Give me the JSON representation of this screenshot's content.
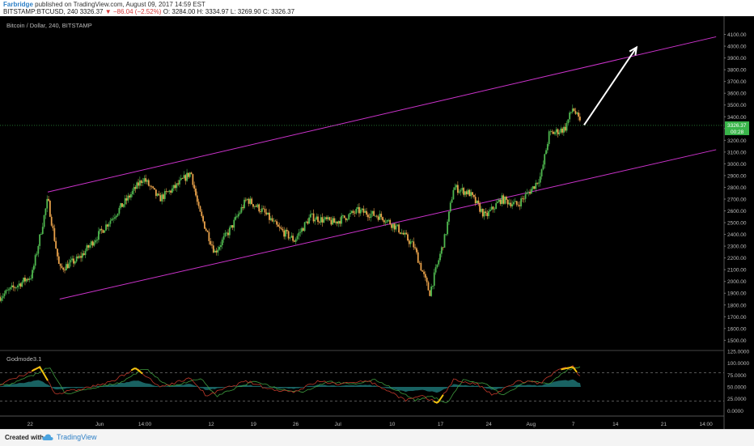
{
  "header": {
    "author": "Farbridge",
    "published_text": "published on TradingView.com, August 09, 2017 14:59 EST",
    "symbol": "BITSTAMP:BTCUSD, 240",
    "last": "3326.37",
    "change": "−86.04 (−2.52%)",
    "ohlc": "O: 3284.00  H: 3334.97  L: 3269.90  C: 3326.37"
  },
  "footer": {
    "created_with": "Created with",
    "brand": "TradingView"
  },
  "colors": {
    "up": "#4fb84f",
    "down": "#e8a14a",
    "channel": "#cc33cc",
    "arrow": "#ffffff",
    "price_label": "#39b54a"
  },
  "chart_data": [
    {
      "type": "candlestick",
      "title": "Bitcoin / Dollar, 240, BITSTAMP",
      "y_tick_labels": [
        "1500.00",
        "1600.00",
        "1700.00",
        "1800.00",
        "1900.00",
        "2000.00",
        "2100.00",
        "2200.00",
        "2300.00",
        "2400.00",
        "2500.00",
        "2600.00",
        "2700.00",
        "2800.00",
        "2900.00",
        "3000.00",
        "3100.00",
        "3200.00",
        "3300.00",
        "3400.00",
        "3500.00",
        "3600.00",
        "3700.00",
        "3800.00",
        "3900.00",
        "4000.00",
        "4100.00"
      ],
      "ylim": [
        1420,
        4200
      ],
      "x_tick_labels": [
        "22",
        "Jun",
        "14:00",
        "12",
        "19",
        "26",
        "Jul",
        "10",
        "17",
        "24",
        "Aug",
        "7",
        "14",
        "21",
        "14:00"
      ],
      "last_price": {
        "value": 3326.37,
        "label": "3326.37",
        "countdown": "00:28"
      },
      "price_path": [
        {
          "d": 0,
          "p": 1870
        },
        {
          "d": 4,
          "p": 2050
        },
        {
          "d": 6,
          "p": 2700
        },
        {
          "d": 7.5,
          "p": 2100
        },
        {
          "d": 10,
          "p": 2200
        },
        {
          "d": 13,
          "p": 2450
        },
        {
          "d": 16,
          "p": 2700
        },
        {
          "d": 18,
          "p": 2880
        },
        {
          "d": 20,
          "p": 2700
        },
        {
          "d": 22,
          "p": 2800
        },
        {
          "d": 24,
          "p": 2930
        },
        {
          "d": 25,
          "p": 2600
        },
        {
          "d": 27,
          "p": 2250
        },
        {
          "d": 29,
          "p": 2450
        },
        {
          "d": 31,
          "p": 2700
        },
        {
          "d": 33,
          "p": 2600
        },
        {
          "d": 35,
          "p": 2450
        },
        {
          "d": 37,
          "p": 2350
        },
        {
          "d": 39,
          "p": 2550
        },
        {
          "d": 42,
          "p": 2500
        },
        {
          "d": 45,
          "p": 2600
        },
        {
          "d": 48,
          "p": 2550
        },
        {
          "d": 50,
          "p": 2450
        },
        {
          "d": 52,
          "p": 2300
        },
        {
          "d": 54,
          "p": 1900
        },
        {
          "d": 56,
          "p": 2400
        },
        {
          "d": 57,
          "p": 2800
        },
        {
          "d": 59,
          "p": 2750
        },
        {
          "d": 61,
          "p": 2550
        },
        {
          "d": 63,
          "p": 2700
        },
        {
          "d": 65,
          "p": 2650
        },
        {
          "d": 67,
          "p": 2800
        },
        {
          "d": 68,
          "p": 2900
        },
        {
          "d": 69,
          "p": 3250
        },
        {
          "d": 71,
          "p": 3300
        },
        {
          "d": 72,
          "p": 3480
        },
        {
          "d": 73,
          "p": 3330
        }
      ],
      "trend_channel": {
        "upper": [
          {
            "d": 6,
            "p": 2760
          },
          {
            "d": 90,
            "p": 4080
          }
        ],
        "lower": [
          {
            "d": 7.5,
            "p": 1850
          },
          {
            "d": 90,
            "p": 3120
          }
        ]
      },
      "arrow": {
        "from": {
          "d": 73,
          "p": 3330
        },
        "to": {
          "d": 80,
          "p": 3990
        }
      }
    },
    {
      "type": "line",
      "title": "Godmode3.1",
      "y_tick_labels": [
        "0.0000",
        "25.0000",
        "50.0000",
        "75.0000",
        "100.0000",
        "125.0000"
      ],
      "ylim": [
        -8,
        125
      ],
      "levels": [
        20,
        80
      ],
      "oscillator_path": [
        {
          "d": 0,
          "v": 55
        },
        {
          "d": 3,
          "v": 75
        },
        {
          "d": 5,
          "v": 92
        },
        {
          "d": 7,
          "v": 35
        },
        {
          "d": 10,
          "v": 45
        },
        {
          "d": 14,
          "v": 60
        },
        {
          "d": 17,
          "v": 90
        },
        {
          "d": 20,
          "v": 50
        },
        {
          "d": 24,
          "v": 68
        },
        {
          "d": 26,
          "v": 30
        },
        {
          "d": 28,
          "v": 45
        },
        {
          "d": 31,
          "v": 62
        },
        {
          "d": 34,
          "v": 45
        },
        {
          "d": 37,
          "v": 40
        },
        {
          "d": 40,
          "v": 62
        },
        {
          "d": 43,
          "v": 55
        },
        {
          "d": 46,
          "v": 65
        },
        {
          "d": 49,
          "v": 40
        },
        {
          "d": 51,
          "v": 22
        },
        {
          "d": 53,
          "v": 30
        },
        {
          "d": 55,
          "v": 16
        },
        {
          "d": 57,
          "v": 65
        },
        {
          "d": 60,
          "v": 55
        },
        {
          "d": 62,
          "v": 32
        },
        {
          "d": 65,
          "v": 62
        },
        {
          "d": 68,
          "v": 58
        },
        {
          "d": 70,
          "v": 85
        },
        {
          "d": 72,
          "v": 92
        },
        {
          "d": 73,
          "v": 70
        }
      ]
    }
  ]
}
